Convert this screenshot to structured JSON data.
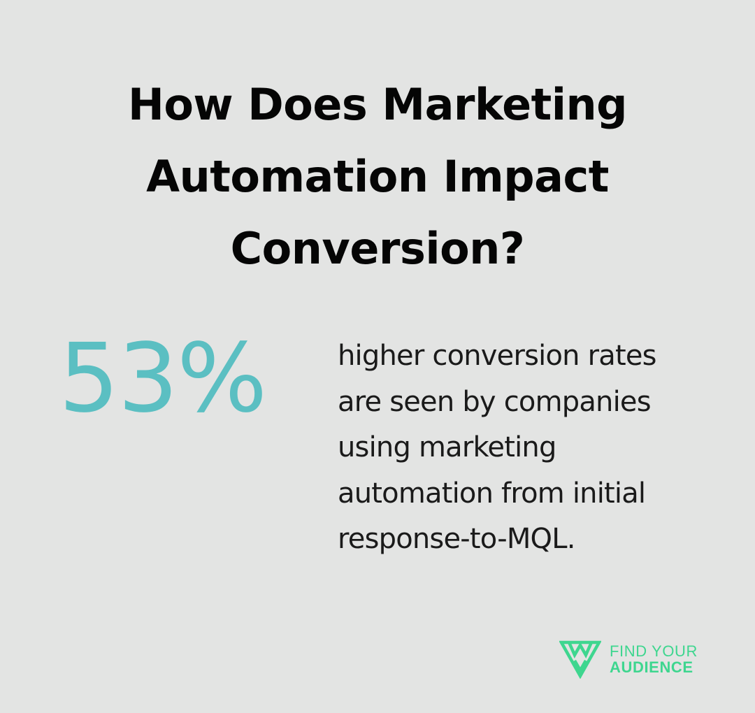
{
  "title": "How Does Marketing Automation Impact Conversion?",
  "stat": {
    "value": "53%",
    "description_lines": [
      "higher conversion rates",
      "are seen by companies",
      "using marketing",
      "automation from initial",
      "response-to-MQL."
    ]
  },
  "brand": {
    "line1": "FIND YOUR",
    "line2": "AUDIENCE",
    "logo_icon": "find-your-audience-logo-icon"
  },
  "colors": {
    "background": "#e3e4e3",
    "stat_accent": "#5bbfc2",
    "brand_green": "#3ed68f",
    "title_text": "#050505",
    "body_text": "#1a1a1a"
  }
}
